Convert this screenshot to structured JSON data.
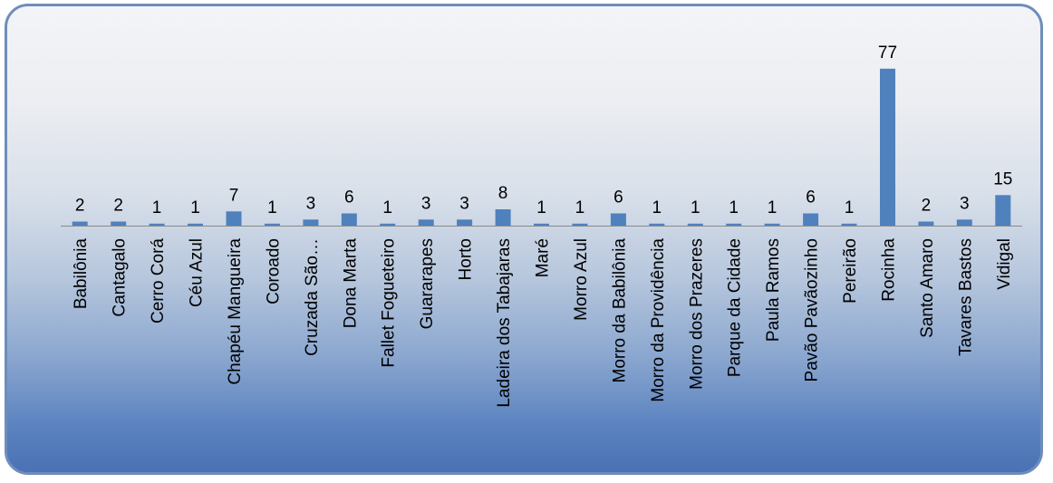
{
  "colors": {
    "bar": "#4f81bd",
    "axis": "#8a8a8a",
    "frame_border": "#6f8dbb"
  },
  "chart_data": {
    "type": "bar",
    "title": "",
    "xlabel": "",
    "ylabel": "",
    "ylim": [
      0,
      80
    ],
    "grid": false,
    "legend": "none",
    "data_labels": true,
    "categories": [
      "Babilônia",
      "Cantagalo",
      "Cerro Corá",
      "Céu Azul",
      "Chapéu Mangueira",
      "Coroado",
      "Cruzada São…",
      "Dona Marta",
      "Fallet Fogueteiro",
      "Guararapes",
      "Horto",
      "Ladeira dos Tabajaras",
      "Maré",
      "Morro Azul",
      "Morro da Babilônia",
      "Morro da Providência",
      "Morro dos Prazeres",
      "Parque da Cidade",
      "Paula Ramos",
      "Pavão Pavãozinho",
      "Pereirão",
      "Rocinha",
      "Santo Amaro",
      "Tavares Bastos",
      "Vidigal"
    ],
    "values": [
      2,
      2,
      1,
      1,
      7,
      1,
      3,
      6,
      1,
      3,
      3,
      8,
      1,
      1,
      6,
      1,
      1,
      1,
      1,
      6,
      1,
      77,
      2,
      3,
      15
    ]
  }
}
